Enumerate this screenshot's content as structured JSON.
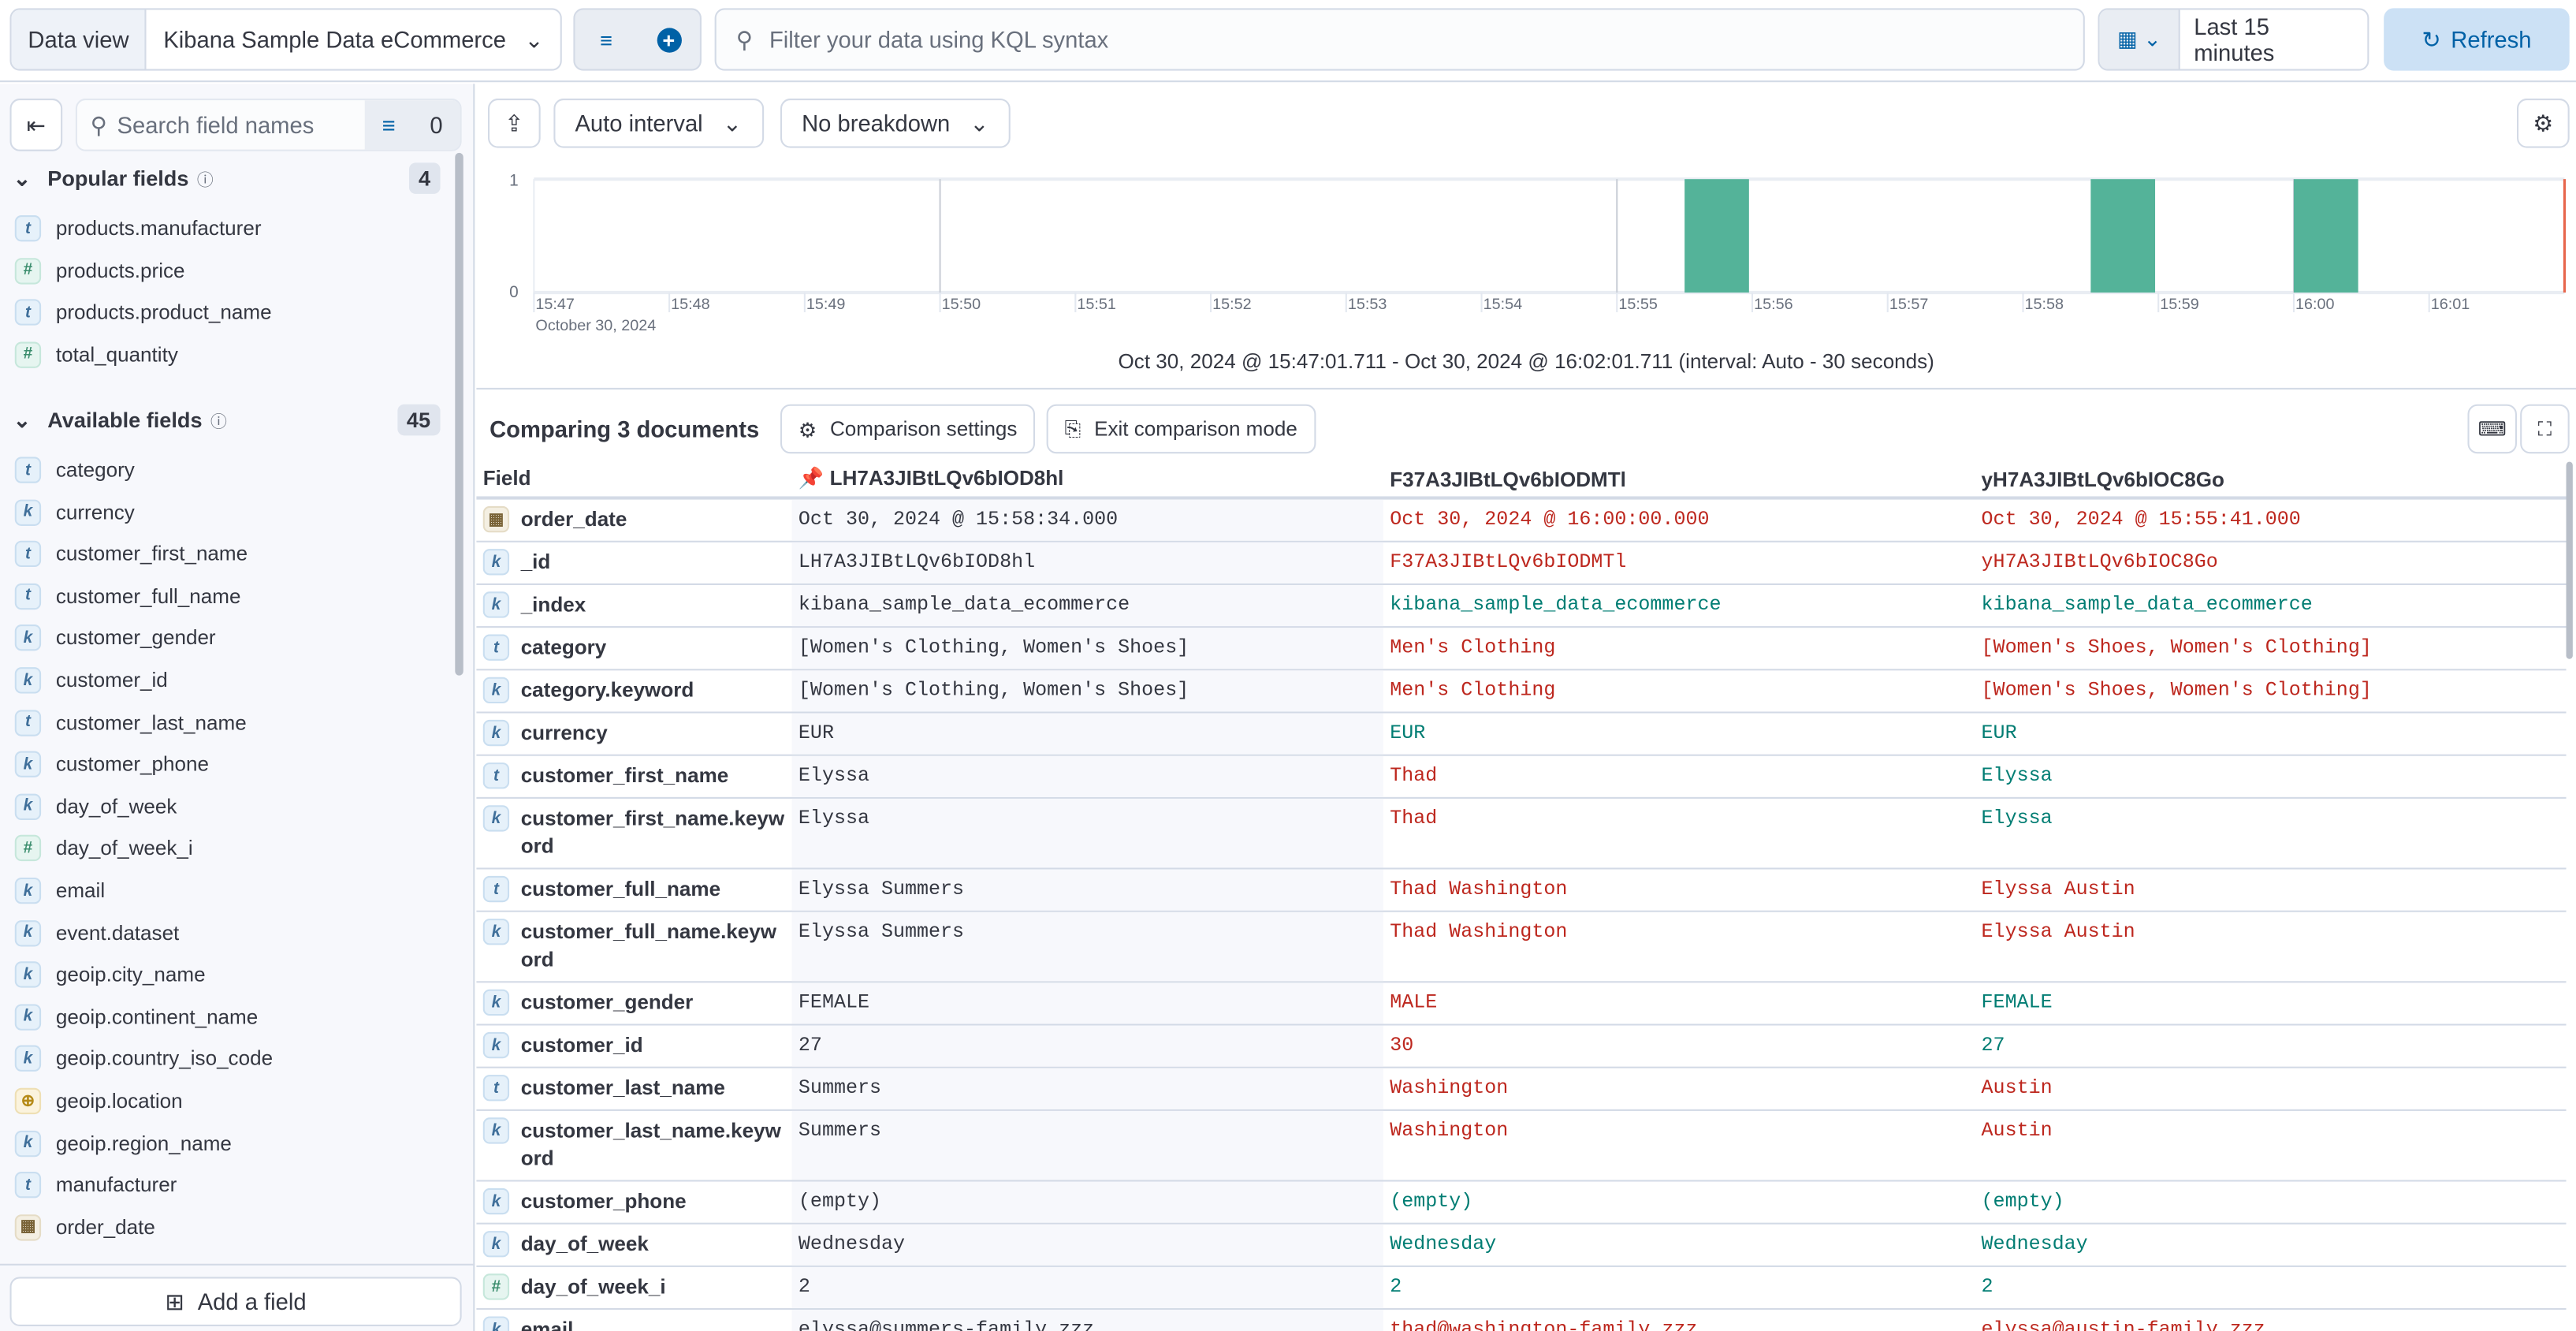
{
  "topbar": {
    "data_view_label": "Data view",
    "data_view_value": "Kibana Sample Data eCommerce",
    "query_placeholder": "Filter your data using KQL syntax",
    "time_range": "Last 15 minutes",
    "refresh_label": "Refresh"
  },
  "sidebar": {
    "search_placeholder": "Search field names",
    "filter_count": "0",
    "popular": {
      "title": "Popular fields",
      "count": "4",
      "items": [
        {
          "type": "t",
          "name": "products.manufacturer"
        },
        {
          "type": "n",
          "name": "products.price"
        },
        {
          "type": "t",
          "name": "products.product_name"
        },
        {
          "type": "n",
          "name": "total_quantity"
        }
      ]
    },
    "available": {
      "title": "Available fields",
      "count": "45",
      "items": [
        {
          "type": "t",
          "name": "category"
        },
        {
          "type": "k",
          "name": "currency"
        },
        {
          "type": "t",
          "name": "customer_first_name"
        },
        {
          "type": "t",
          "name": "customer_full_name"
        },
        {
          "type": "k",
          "name": "customer_gender"
        },
        {
          "type": "k",
          "name": "customer_id"
        },
        {
          "type": "t",
          "name": "customer_last_name"
        },
        {
          "type": "k",
          "name": "customer_phone"
        },
        {
          "type": "k",
          "name": "day_of_week"
        },
        {
          "type": "n",
          "name": "day_of_week_i"
        },
        {
          "type": "k",
          "name": "email"
        },
        {
          "type": "k",
          "name": "event.dataset"
        },
        {
          "type": "k",
          "name": "geoip.city_name"
        },
        {
          "type": "k",
          "name": "geoip.continent_name"
        },
        {
          "type": "k",
          "name": "geoip.country_iso_code"
        },
        {
          "type": "g",
          "name": "geoip.location"
        },
        {
          "type": "k",
          "name": "geoip.region_name"
        },
        {
          "type": "t",
          "name": "manufacturer"
        },
        {
          "type": "d",
          "name": "order_date"
        }
      ]
    },
    "add_field_label": "Add a field"
  },
  "toolbar": {
    "interval": "Auto interval",
    "breakdown": "No breakdown"
  },
  "chart_data": {
    "type": "bar",
    "ylim": [
      0,
      1
    ],
    "y_ticks": [
      "1",
      "0"
    ],
    "x_ticks": [
      "15:47",
      "15:48",
      "15:49",
      "15:50",
      "15:51",
      "15:52",
      "15:53",
      "15:54",
      "15:55",
      "15:56",
      "15:57",
      "15:58",
      "15:59",
      "16:00",
      "16:01"
    ],
    "x_sublabel": "October 30, 2024",
    "bars": [
      {
        "start": "15:55:30",
        "value": 1
      },
      {
        "start": "15:58:30",
        "value": 1
      },
      {
        "start": "16:00:00",
        "value": 1
      }
    ],
    "bar_color": "#54b399",
    "now_marker_color": "#e7664c",
    "range_label": "Oct 30, 2024 @ 15:47:01.711 - Oct 30, 2024 @ 16:02:01.711 (interval: Auto - 30 seconds)"
  },
  "comparison": {
    "title": "Comparing 3 documents",
    "settings_label": "Comparison settings",
    "exit_label": "Exit comparison mode",
    "field_header": "Field",
    "docs": [
      "LH7A3JIBtLQv6bIOD8hl",
      "F37A3JIBtLQv6bIODMTl",
      "yH7A3JIBtLQv6bIOC8Go"
    ],
    "colors": {
      "diff": "#bd271e",
      "same": "#017d73"
    },
    "rows": [
      {
        "type": "d",
        "field": "order_date",
        "values": [
          "Oct 30, 2024 @ 15:58:34.000",
          "Oct 30, 2024 @ 16:00:00.000",
          "Oct 30, 2024 @ 15:55:41.000"
        ],
        "status": [
          "diff",
          "diff"
        ]
      },
      {
        "type": "k",
        "field": "_id",
        "values": [
          "LH7A3JIBtLQv6bIOD8hl",
          "F37A3JIBtLQv6bIODMTl",
          "yH7A3JIBtLQv6bIOC8Go"
        ],
        "status": [
          "diff",
          "diff"
        ]
      },
      {
        "type": "k",
        "field": "_index",
        "values": [
          "kibana_sample_data_ecommerce",
          "kibana_sample_data_ecommerce",
          "kibana_sample_data_ecommerce"
        ],
        "status": [
          "same",
          "same"
        ]
      },
      {
        "type": "t",
        "field": "category",
        "values": [
          "[Women's Clothing, Women's Shoes]",
          "Men's Clothing",
          "[Women's Shoes, Women's Clothing]"
        ],
        "status": [
          "diff",
          "diff"
        ]
      },
      {
        "type": "k",
        "field": "category.keyword",
        "values": [
          "[Women's Clothing, Women's Shoes]",
          "Men's Clothing",
          "[Women's Shoes, Women's Clothing]"
        ],
        "status": [
          "diff",
          "diff"
        ]
      },
      {
        "type": "k",
        "field": "currency",
        "values": [
          "EUR",
          "EUR",
          "EUR"
        ],
        "status": [
          "same",
          "same"
        ]
      },
      {
        "type": "t",
        "field": "customer_first_name",
        "values": [
          "Elyssa",
          "Thad",
          "Elyssa"
        ],
        "status": [
          "diff",
          "same"
        ]
      },
      {
        "type": "k",
        "field": "customer_first_name.keyword",
        "values": [
          "Elyssa",
          "Thad",
          "Elyssa"
        ],
        "status": [
          "diff",
          "same"
        ]
      },
      {
        "type": "t",
        "field": "customer_full_name",
        "values": [
          "Elyssa Summers",
          "Thad Washington",
          "Elyssa Austin"
        ],
        "status": [
          "diff",
          "diff"
        ]
      },
      {
        "type": "k",
        "field": "customer_full_name.keyword",
        "values": [
          "Elyssa Summers",
          "Thad Washington",
          "Elyssa Austin"
        ],
        "status": [
          "diff",
          "diff"
        ]
      },
      {
        "type": "k",
        "field": "customer_gender",
        "values": [
          "FEMALE",
          "MALE",
          "FEMALE"
        ],
        "status": [
          "diff",
          "same"
        ]
      },
      {
        "type": "k",
        "field": "customer_id",
        "values": [
          "27",
          "30",
          "27"
        ],
        "status": [
          "diff",
          "same"
        ]
      },
      {
        "type": "t",
        "field": "customer_last_name",
        "values": [
          "Summers",
          "Washington",
          "Austin"
        ],
        "status": [
          "diff",
          "diff"
        ]
      },
      {
        "type": "k",
        "field": "customer_last_name.keyword",
        "values": [
          "Summers",
          "Washington",
          "Austin"
        ],
        "status": [
          "diff",
          "diff"
        ]
      },
      {
        "type": "k",
        "field": "customer_phone",
        "values": [
          "(empty)",
          "(empty)",
          "(empty)"
        ],
        "status": [
          "same",
          "same"
        ]
      },
      {
        "type": "k",
        "field": "day_of_week",
        "values": [
          "Wednesday",
          "Wednesday",
          "Wednesday"
        ],
        "status": [
          "same",
          "same"
        ]
      },
      {
        "type": "n",
        "field": "day_of_week_i",
        "values": [
          "2",
          "2",
          "2"
        ],
        "status": [
          "same",
          "same"
        ]
      },
      {
        "type": "k",
        "field": "email",
        "values": [
          "elyssa@summers-family.zzz",
          "thad@washington-family.zzz",
          "elyssa@austin-family.zzz"
        ],
        "status": [
          "diff",
          "diff"
        ]
      }
    ]
  }
}
